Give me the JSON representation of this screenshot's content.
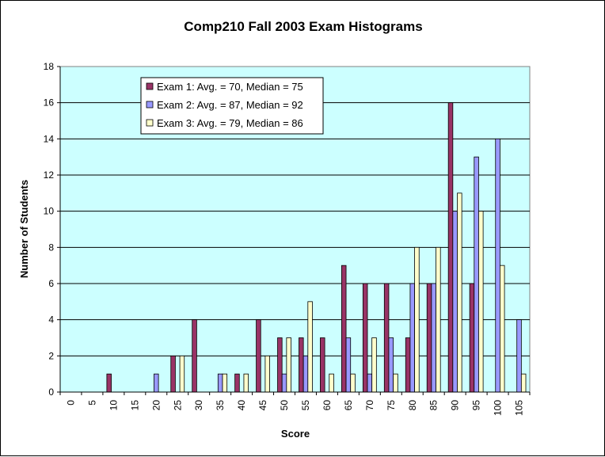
{
  "chart_data": {
    "type": "bar",
    "title": "Comp210 Fall 2003 Exam Histograms",
    "xlabel": "Score",
    "ylabel": "Number of Students",
    "ylim": [
      0,
      18
    ],
    "yticks": [
      0,
      2,
      4,
      6,
      8,
      10,
      12,
      14,
      16,
      18
    ],
    "grid": true,
    "legend": "top-left",
    "plot_background": "#ccffff",
    "categories": [
      "0",
      "5",
      "10",
      "15",
      "20",
      "25",
      "30",
      "35",
      "40",
      "45",
      "50",
      "55",
      "60",
      "65",
      "70",
      "75",
      "80",
      "85",
      "90",
      "95",
      "100",
      "105"
    ],
    "series": [
      {
        "name": "Exam 1: Avg. = 70, Median = 75",
        "color": "#993366",
        "values": [
          0,
          0,
          1,
          0,
          0,
          2,
          4,
          0,
          1,
          4,
          3,
          3,
          3,
          7,
          6,
          6,
          3,
          6,
          16,
          6,
          0,
          0
        ]
      },
      {
        "name": "Exam 2: Avg. = 87, Median = 92",
        "color": "#9999ff",
        "values": [
          0,
          0,
          0,
          0,
          1,
          0,
          0,
          1,
          0,
          0,
          1,
          2,
          0,
          3,
          1,
          3,
          6,
          6,
          10,
          13,
          14,
          4
        ]
      },
      {
        "name": "Exam 3: Avg. = 79, Median = 86",
        "color": "#ffffcc",
        "values": [
          0,
          0,
          0,
          0,
          0,
          2,
          0,
          1,
          1,
          2,
          3,
          5,
          1,
          1,
          3,
          1,
          8,
          8,
          11,
          10,
          7,
          1
        ]
      }
    ]
  }
}
